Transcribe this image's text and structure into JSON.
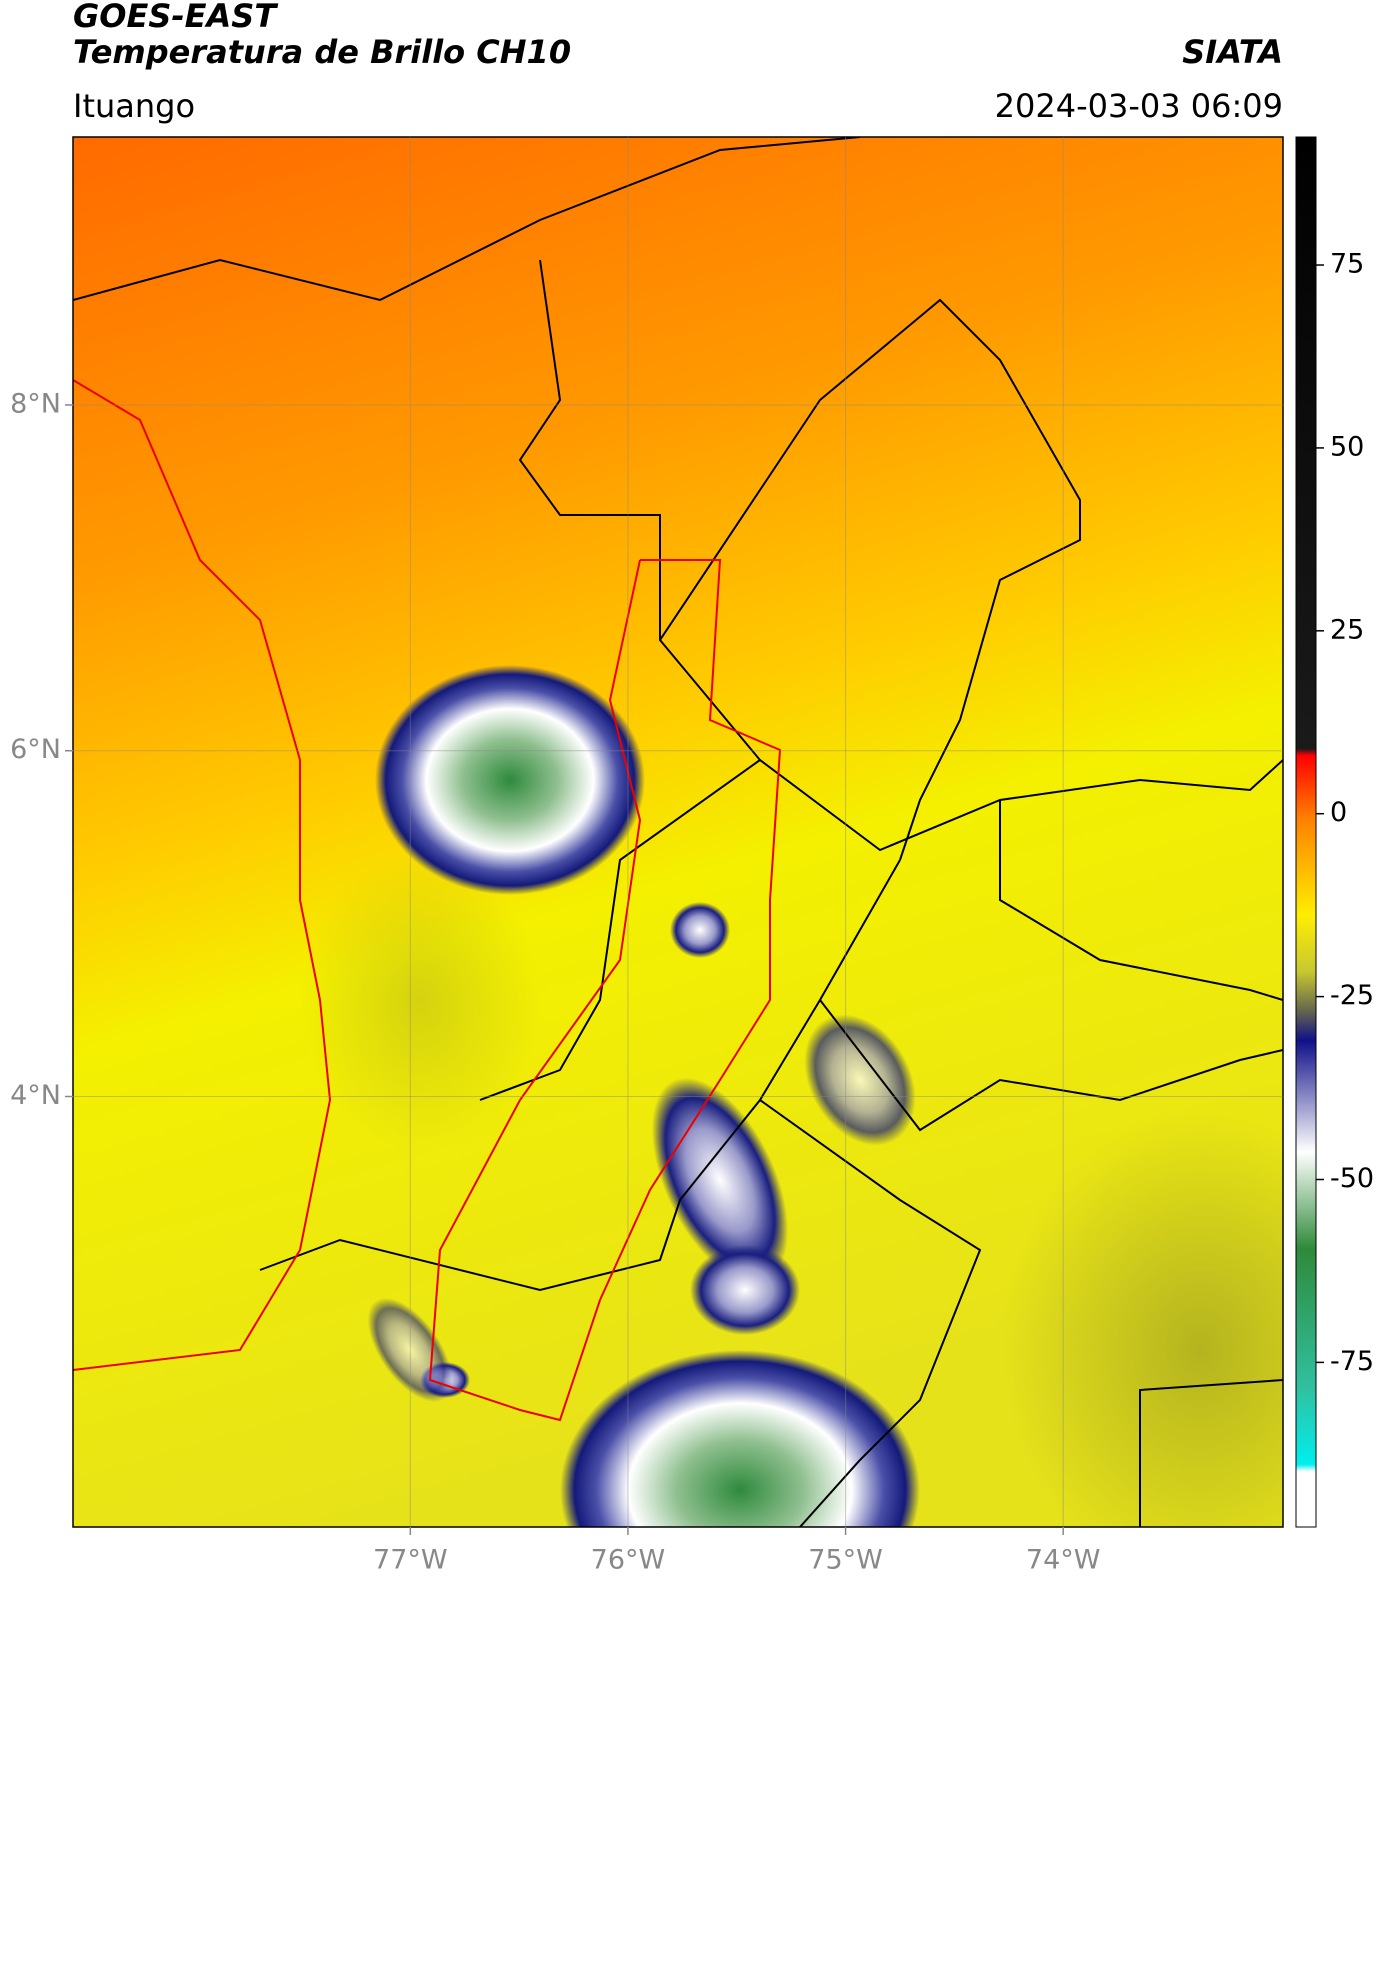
{
  "map": {
    "title": "GOES-EAST",
    "subtitle": "Temperatura de Brillo CH10",
    "brand": "SIATA",
    "location": "Ituango",
    "timestamp": "2024-03-03 06:09",
    "xlim": [
      -78.55,
      -72.99
    ],
    "ylim": [
      1.51,
      9.55
    ],
    "xticks": [
      {
        "value": -77,
        "label": "77°W"
      },
      {
        "value": -76,
        "label": "76°W"
      },
      {
        "value": -75,
        "label": "75°W"
      },
      {
        "value": -74,
        "label": "74°W"
      }
    ],
    "yticks": [
      {
        "value": 8,
        "label": "8°N"
      },
      {
        "value": 6,
        "label": "6°N"
      },
      {
        "value": 4,
        "label": "4°N"
      }
    ],
    "grid": true,
    "colorbar": {
      "clim": [
        -97.5,
        92.5
      ],
      "ticks": [
        75,
        50,
        25,
        0,
        -25,
        -50,
        -75
      ]
    }
  }
}
